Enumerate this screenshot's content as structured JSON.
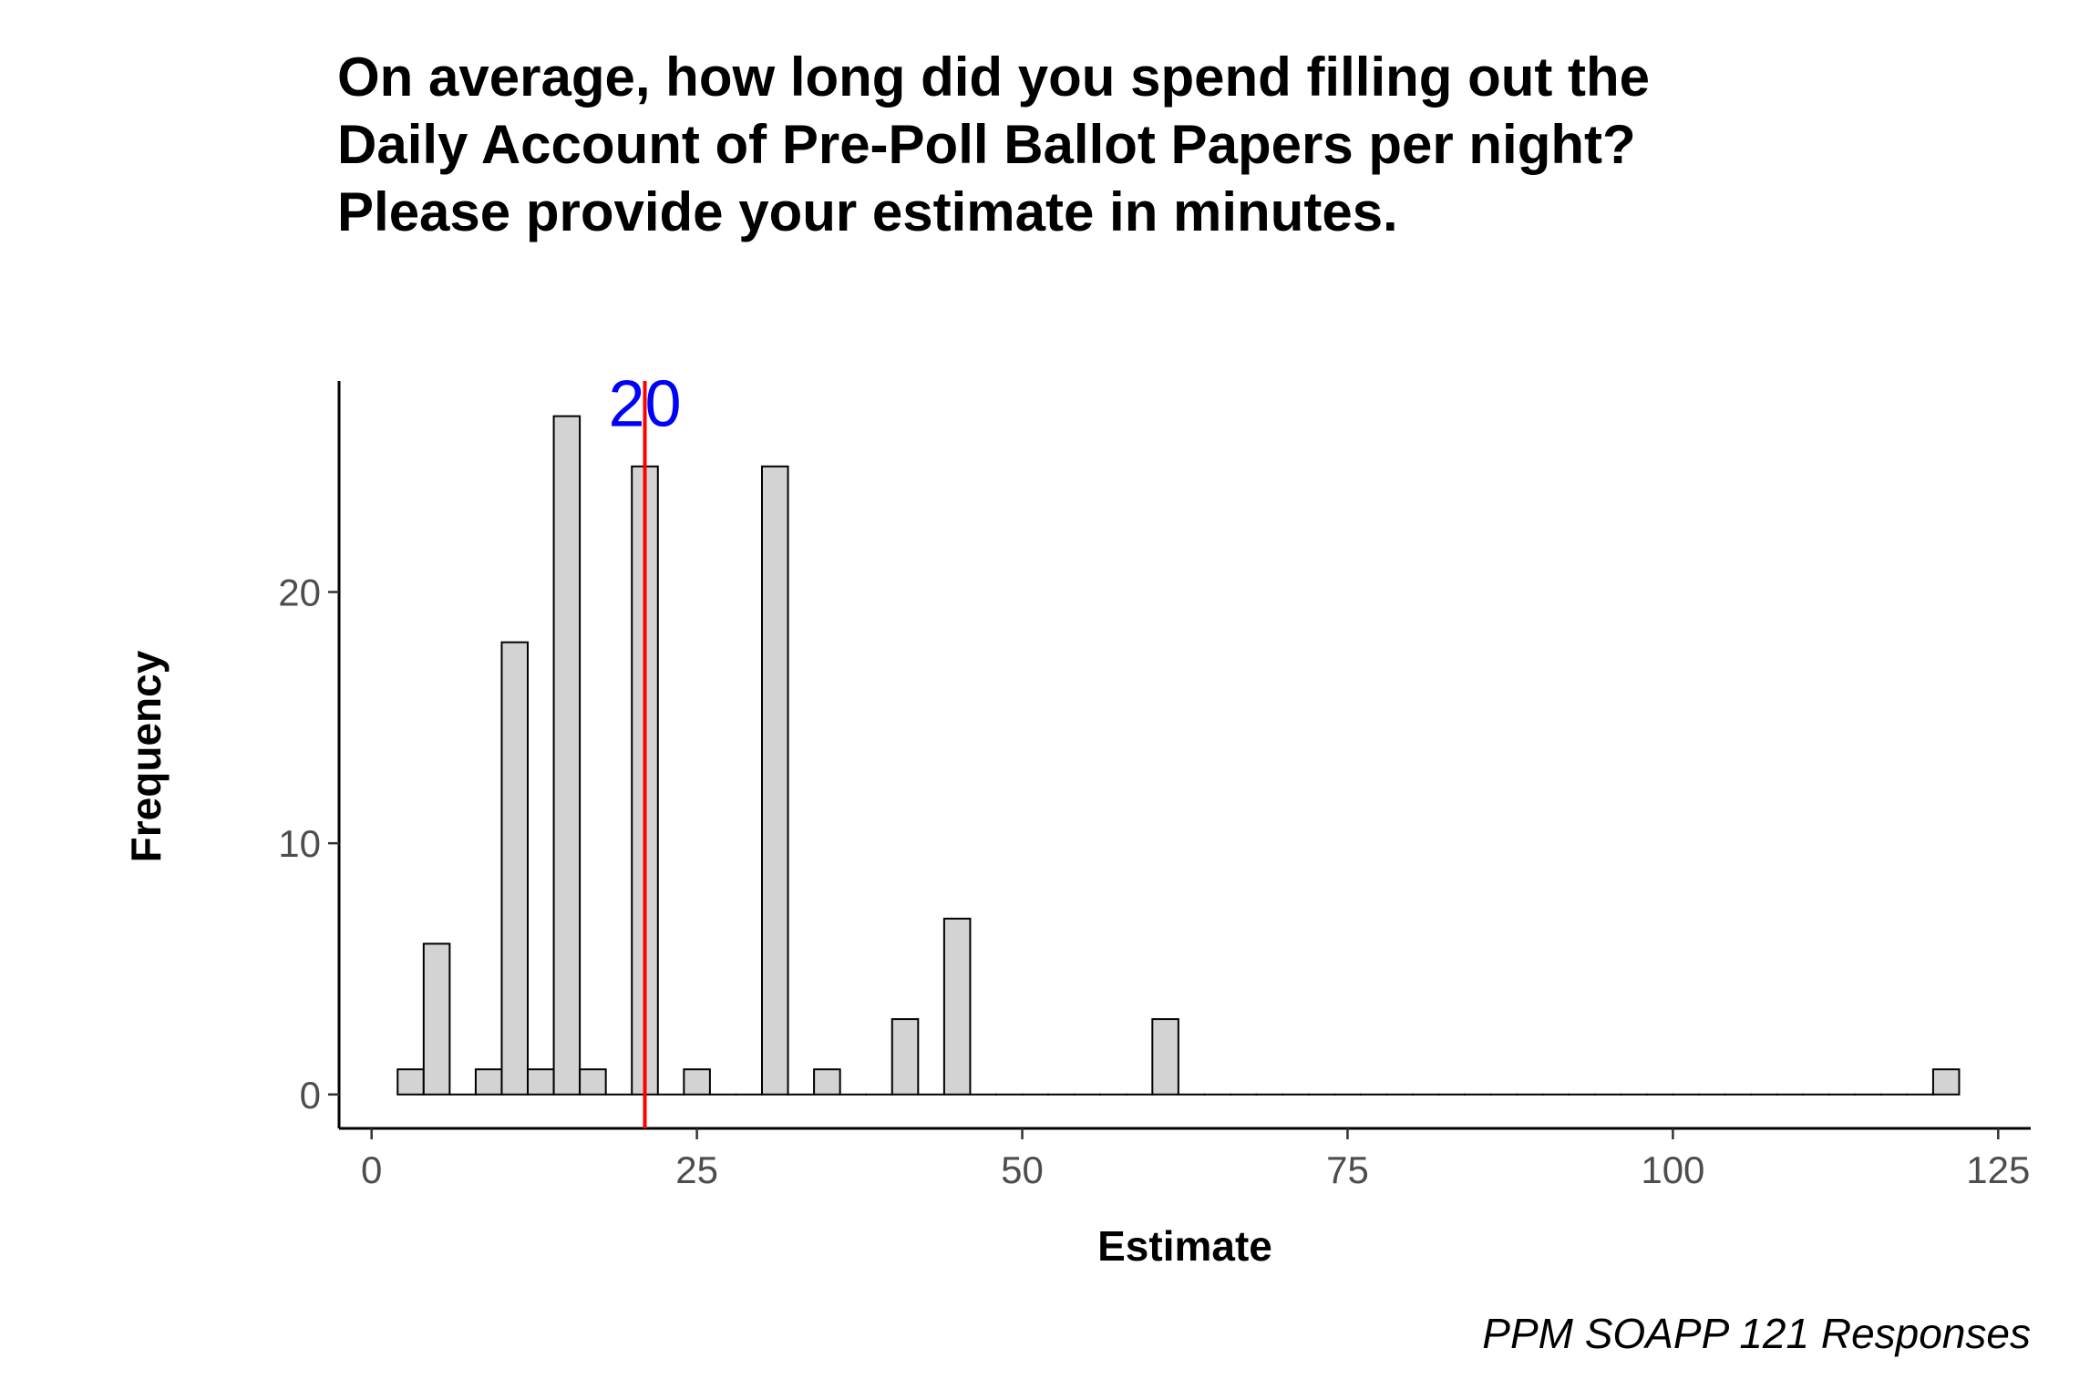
{
  "chart_data": {
    "type": "bar",
    "title_lines": [
      "On average, how long did you spend filling out the",
      "Daily Account of Pre-Poll Ballot Papers per night?",
      "Please provide your estimate in minutes."
    ],
    "xlabel": "Estimate",
    "ylabel": "Frequency",
    "caption": "PPM SOAPP 121 Responses",
    "xlim": [
      -2.5,
      127.5
    ],
    "ylim": [
      -1.35,
      28.4
    ],
    "x_ticks": [
      0,
      25,
      50,
      75,
      100,
      125
    ],
    "y_ticks": [
      0,
      10,
      20
    ],
    "bin_width": 2,
    "bins": {
      "x": [
        3,
        5,
        7,
        9,
        11,
        13,
        15,
        17,
        19,
        21,
        23,
        25,
        27,
        29,
        31,
        33,
        35,
        37,
        39,
        41,
        43,
        45,
        47,
        49,
        51,
        53,
        55,
        57,
        59,
        61,
        63,
        65,
        67,
        69,
        71,
        73,
        75,
        77,
        79,
        81,
        83,
        85,
        87,
        89,
        91,
        93,
        95,
        97,
        99,
        101,
        103,
        105,
        107,
        109,
        111,
        113,
        115,
        117,
        119,
        121
      ],
      "values": [
        1,
        6,
        0,
        1,
        18,
        1,
        27,
        1,
        0,
        25,
        0,
        1,
        0,
        0,
        25,
        0,
        1,
        0,
        0,
        3,
        0,
        7,
        0,
        0,
        0,
        0,
        0,
        0,
        0,
        3,
        0,
        0,
        0,
        0,
        0,
        0,
        0,
        0,
        0,
        0,
        0,
        0,
        0,
        0,
        0,
        0,
        0,
        0,
        0,
        0,
        0,
        0,
        0,
        0,
        0,
        0,
        0,
        0,
        0,
        1
      ]
    },
    "reference_line": {
      "x": 21,
      "label": "20",
      "color": "#ff0000",
      "label_color": "#0000ff"
    },
    "bar_fill": "#d3d3d3",
    "bar_stroke": "#000000",
    "grid": false
  }
}
